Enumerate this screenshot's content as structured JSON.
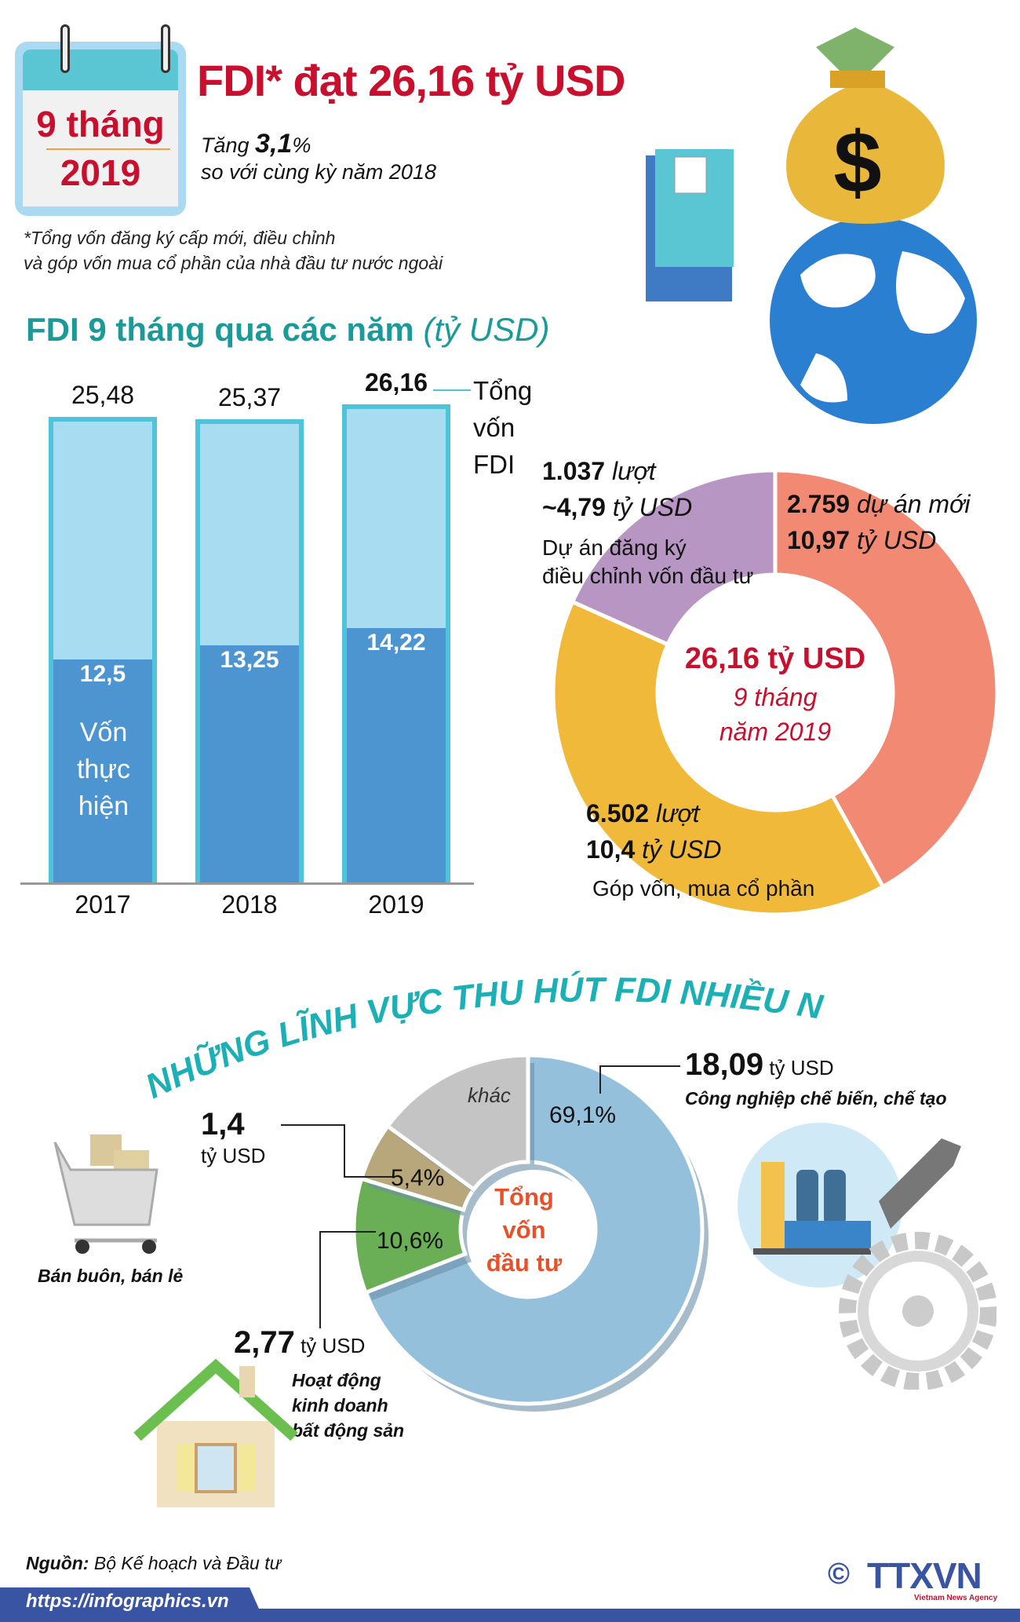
{
  "header": {
    "calendar_line1": "9 tháng",
    "calendar_line2": "2019",
    "title": "FDI* đạt 26,16 tỷ USD",
    "growth_prefix": "Tăng ",
    "growth_value": "3,1",
    "growth_unit": "%",
    "growth_compare": "so với cùng kỳ năm 2018",
    "footnote_line1": "*Tổng vốn đăng ký cấp mới, điều chỉnh",
    "footnote_line2": "và góp vốn mua cổ phần của nhà đầu tư nước ngoài"
  },
  "chart_data": [
    {
      "type": "bar",
      "title": "FDI 9 tháng qua các năm",
      "title_unit": "(tỷ USD)",
      "categories": [
        "2017",
        "2018",
        "2019"
      ],
      "series": [
        {
          "name": "Tổng vốn FDI",
          "values": [
            25.48,
            25.37,
            26.16
          ],
          "labels": [
            "25,48",
            "25,37",
            "26,16"
          ],
          "color": "#a8dcf0"
        },
        {
          "name": "Vốn thực hiện",
          "values": [
            12.5,
            13.25,
            14.22
          ],
          "labels": [
            "12,5",
            "13,25",
            "14,22"
          ],
          "color": "#4d95d0"
        }
      ],
      "legend_total": [
        "Tổng",
        "vốn",
        "FDI"
      ],
      "legend_realized": [
        "Vốn",
        "thực",
        "hiện"
      ],
      "border_color": "#4fc3d9"
    },
    {
      "type": "pie",
      "center_title": "26,16 tỷ USD",
      "center_line2": "9 tháng",
      "center_line3": "năm 2019",
      "slices": [
        {
          "value": 10.97,
          "count": "2.759",
          "count_label": " dự án mới",
          "amount": "10,97",
          "amount_unit": " tỷ USD",
          "color": "#f28a73"
        },
        {
          "value": 10.4,
          "count": "6.502",
          "count_label": " lượt",
          "amount": "10,4",
          "amount_unit": " tỷ USD",
          "desc": "Góp vốn, mua cổ phần",
          "color": "#f0b93a"
        },
        {
          "value": 4.79,
          "count": "1.037",
          "count_label": " lượt",
          "amount": "~4,79",
          "amount_unit": " tỷ USD",
          "desc1": "Dự án đăng ký",
          "desc2": "điều chỉnh vốn đầu tư",
          "color": "#b896c4"
        }
      ]
    },
    {
      "type": "pie",
      "title": "NHỮNG LĨNH VỰC THU HÚT FDI NHIỀU NHẤT",
      "center": [
        "Tổng",
        "vốn",
        "đầu tư"
      ],
      "slices": [
        {
          "label": "Công nghiệp chế biến, chế tạo",
          "percent": 69.1,
          "percent_label": "69,1%",
          "amount": "18,09",
          "unit": " tỷ USD",
          "color": "#94c0dc"
        },
        {
          "label": "Hoạt động kinh doanh bất động sản",
          "label_lines": [
            "Hoạt động",
            "kinh doanh",
            "bất động sản"
          ],
          "percent": 10.6,
          "percent_label": "10,6%",
          "amount": "2,77",
          "unit": " tỷ USD",
          "color": "#6aae55"
        },
        {
          "label": "Bán buôn, bán lẻ",
          "percent": 5.4,
          "percent_label": "5,4%",
          "amount": "1,4",
          "unit": "tỷ USD",
          "color": "#b7a77a"
        },
        {
          "label": "khác",
          "percent": 14.9,
          "color": "#c4c4c4"
        }
      ]
    }
  ],
  "footer": {
    "source_label": "Nguồn:",
    "source": " Bộ Kế hoạch và Đầu tư",
    "url": "https://infographics.vn",
    "logo": "TTXVN",
    "logo_sub": "Vietnam News Agency",
    "copyright": "©"
  }
}
